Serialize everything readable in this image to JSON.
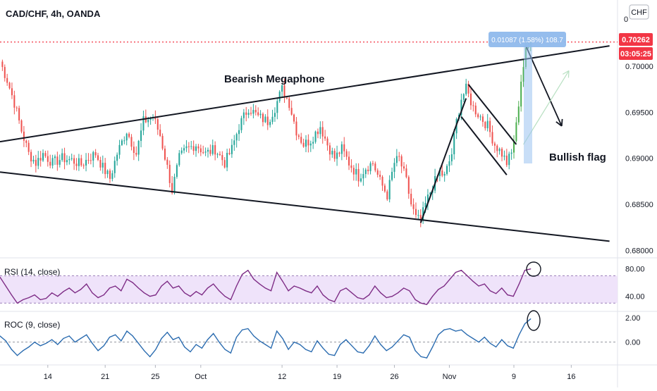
{
  "header": {
    "symbol_line": "CAD/CHF, 4h, OANDA",
    "currency_badge": "CHF",
    "top_axis_stub": "0"
  },
  "price_labels": {
    "last": "0.70262",
    "countdown": "03:05:25",
    "measure": "0.01087 (1.58%) 108.7"
  },
  "annotations": {
    "pattern_megaphone": "Bearish Megaphone",
    "pattern_flag": "Bullish flag"
  },
  "colors": {
    "up_candle": "#26a69a",
    "up_candle_bright": "#4caf50",
    "down_candle": "#ef5350",
    "rsi_line": "#7e2d86",
    "rsi_band": "#efe3fa",
    "roc_line": "#2b6cb0",
    "last_price": "#f23645",
    "measure_box": "#9ac2f0"
  },
  "chart_data": [
    {
      "type": "candlestick",
      "title": "CAD/CHF, 4h, OANDA",
      "ylim": [
        0.6795,
        0.7045
      ],
      "y_ticks": [
        "0.70000",
        "0.69500",
        "0.69000",
        "0.68500",
        "0.68000"
      ],
      "x_ticks": [
        "14",
        "21",
        "25",
        "Oct",
        "12",
        "19",
        "26",
        "Nov",
        "9",
        "16"
      ],
      "last_price": 0.70262,
      "close_path": [
        [
          0,
          0.7005
        ],
        [
          3,
          0.6985
        ],
        [
          6,
          0.696
        ],
        [
          9,
          0.693
        ],
        [
          12,
          0.6905
        ],
        [
          15,
          0.6895
        ],
        [
          18,
          0.6905
        ],
        [
          22,
          0.6895
        ],
        [
          26,
          0.69
        ],
        [
          30,
          0.6898
        ],
        [
          34,
          0.6893
        ],
        [
          37,
          0.69
        ],
        [
          40,
          0.6905
        ],
        [
          43,
          0.689
        ],
        [
          46,
          0.6878
        ],
        [
          49,
          0.6905
        ],
        [
          53,
          0.693
        ],
        [
          57,
          0.6905
        ],
        [
          60,
          0.694
        ],
        [
          64,
          0.6945
        ],
        [
          67,
          0.6925
        ],
        [
          70,
          0.689
        ],
        [
          72,
          0.6865
        ],
        [
          75,
          0.69
        ],
        [
          78,
          0.691
        ],
        [
          82,
          0.6915
        ],
        [
          86,
          0.6905
        ],
        [
          90,
          0.691
        ],
        [
          94,
          0.6895
        ],
        [
          97,
          0.691
        ],
        [
          100,
          0.6935
        ],
        [
          104,
          0.6955
        ],
        [
          108,
          0.6945
        ],
        [
          112,
          0.694
        ],
        [
          115,
          0.6955
        ],
        [
          118,
          0.6975
        ],
        [
          121,
          0.696
        ],
        [
          124,
          0.693
        ],
        [
          127,
          0.6915
        ],
        [
          130,
          0.692
        ],
        [
          134,
          0.6935
        ],
        [
          137,
          0.6915
        ],
        [
          140,
          0.69
        ],
        [
          143,
          0.691
        ],
        [
          146,
          0.6895
        ],
        [
          150,
          0.688
        ],
        [
          153,
          0.689
        ],
        [
          156,
          0.6895
        ],
        [
          159,
          0.6875
        ],
        [
          162,
          0.686
        ],
        [
          165,
          0.6895
        ],
        [
          167,
          0.69
        ],
        [
          170,
          0.6875
        ],
        [
          172,
          0.685
        ],
        [
          174,
          0.6835
        ],
        [
          176,
          0.6832
        ],
        [
          178,
          0.685
        ],
        [
          181,
          0.687
        ],
        [
          184,
          0.6885
        ],
        [
          186,
          0.688
        ],
        [
          189,
          0.6905
        ],
        [
          191,
          0.694
        ],
        [
          193,
          0.6965
        ],
        [
          195,
          0.6975
        ],
        [
          198,
          0.6955
        ],
        [
          201,
          0.6945
        ],
        [
          204,
          0.6935
        ],
        [
          207,
          0.6915
        ],
        [
          210,
          0.6905
        ],
        [
          212,
          0.6895
        ],
        [
          214,
          0.6905
        ],
        [
          216,
          0.6935
        ],
        [
          218,
          0.6985
        ],
        [
          220,
          0.7015
        ],
        [
          222,
          0.7026
        ]
      ],
      "trendlines": [
        {
          "name": "megaphone-upper",
          "points": [
            [
              0,
              0.6918
            ],
            [
              255,
              0.7022
            ]
          ]
        },
        {
          "name": "megaphone-lower",
          "points": [
            [
              0,
              0.6885
            ],
            [
              255,
              0.681
            ]
          ]
        },
        {
          "name": "flag-pole",
          "points": [
            [
              176,
              0.683
            ],
            [
              195,
              0.6965
            ]
          ]
        },
        {
          "name": "flag-channel-upper",
          "points": [
            [
              196,
              0.698
            ],
            [
              216,
              0.6915
            ]
          ]
        },
        {
          "name": "flag-channel-lower",
          "points": [
            [
              193,
              0.6945
            ],
            [
              212,
              0.6882
            ]
          ]
        }
      ],
      "arrows": [
        {
          "name": "down-arrow",
          "from": [
            220,
            0.7022
          ],
          "to": [
            235,
            0.6935
          ]
        },
        {
          "name": "up-arrow-faint",
          "from": [
            219,
            0.6915
          ],
          "to": [
            238,
            0.6995
          ]
        }
      ]
    },
    {
      "type": "line",
      "title": "RSI (14, close)",
      "ylim": [
        20,
        90
      ],
      "y_ticks": [
        "80.00",
        "40.00"
      ],
      "band": [
        30,
        70
      ],
      "values": [
        68,
        55,
        42,
        30,
        35,
        38,
        42,
        35,
        37,
        45,
        40,
        47,
        52,
        45,
        50,
        58,
        45,
        38,
        42,
        52,
        55,
        48,
        65,
        60,
        52,
        45,
        40,
        42,
        55,
        62,
        52,
        55,
        45,
        40,
        47,
        42,
        52,
        58,
        48,
        40,
        35,
        55,
        72,
        78,
        65,
        58,
        52,
        48,
        75,
        62,
        48,
        55,
        52,
        48,
        45,
        55,
        42,
        35,
        32,
        48,
        52,
        45,
        38,
        36,
        42,
        55,
        45,
        38,
        40,
        45,
        52,
        48,
        35,
        30,
        28,
        40,
        50,
        55,
        65,
        75,
        78,
        70,
        62,
        55,
        58,
        48,
        44,
        52,
        42,
        40,
        58,
        78,
        80
      ]
    },
    {
      "type": "line",
      "title": "ROC (9, close)",
      "ylim": [
        -1.7,
        2.4
      ],
      "y_ticks": [
        "2.00",
        "0.00"
      ],
      "values": [
        0.5,
        0.1,
        -0.6,
        -1.1,
        -0.7,
        -0.4,
        0.0,
        -0.3,
        -0.1,
        0.2,
        -0.2,
        0.3,
        0.5,
        0.0,
        0.3,
        0.6,
        -0.1,
        -0.7,
        -0.3,
        0.4,
        0.6,
        0.1,
        0.9,
        0.5,
        -0.1,
        -0.7,
        -1.2,
        -0.6,
        0.3,
        0.8,
        0.2,
        0.4,
        -0.4,
        -0.8,
        -0.2,
        -0.5,
        0.2,
        0.7,
        0.0,
        -0.6,
        -0.9,
        0.4,
        1.0,
        1.1,
        0.5,
        0.1,
        -0.2,
        -0.5,
        0.9,
        0.3,
        -0.6,
        0.0,
        -0.2,
        -0.6,
        -0.8,
        0.1,
        -0.5,
        -1.0,
        -1.1,
        -0.2,
        0.2,
        -0.3,
        -0.8,
        -0.9,
        -0.3,
        0.5,
        -0.2,
        -0.7,
        -0.4,
        0.1,
        0.6,
        0.4,
        -0.7,
        -1.2,
        -1.3,
        -0.4,
        0.6,
        1.0,
        1.1,
        0.9,
        1.0,
        0.6,
        0.3,
        0.0,
        0.4,
        -0.1,
        -0.4,
        0.2,
        -0.3,
        -0.5,
        0.6,
        1.5,
        1.9
      ]
    }
  ]
}
